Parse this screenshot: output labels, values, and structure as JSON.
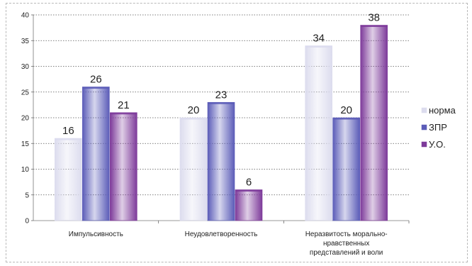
{
  "chart_data": {
    "type": "bar",
    "categories": [
      [
        "Импульсивность"
      ],
      [
        "Неудовлетворенность"
      ],
      [
        "Неразвитость морально-",
        "нравственных",
        "представлений и воли"
      ]
    ],
    "series": [
      {
        "name": "норма",
        "color": "#dcdcee",
        "values": [
          16,
          20,
          34
        ]
      },
      {
        "name": "ЗПР",
        "color": "#5b5cb8",
        "values": [
          26,
          23,
          20
        ]
      },
      {
        "name": "У.О.",
        "color": "#7d3a9a",
        "values": [
          21,
          6,
          38
        ]
      }
    ],
    "ylim": [
      0,
      40
    ],
    "yticks": [
      0,
      5,
      10,
      15,
      20,
      25,
      30,
      35,
      40
    ],
    "grid": true,
    "legend_position": "right",
    "title": "",
    "xlabel": "",
    "ylabel": ""
  }
}
